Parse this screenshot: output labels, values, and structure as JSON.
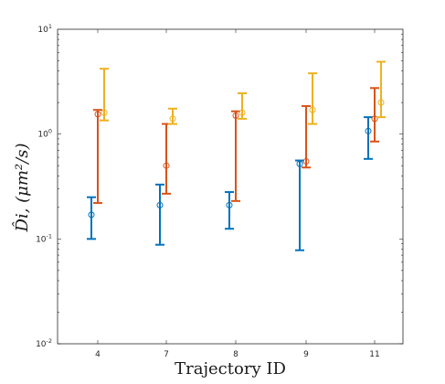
{
  "chart_data": {
    "type": "scatter",
    "subtype": "error-bar",
    "xlabel": "Trajectory ID",
    "ylabel": "D̂i, (μm²/s)",
    "yscale": "log",
    "ylim": [
      0.01,
      10
    ],
    "categories": [
      "4",
      "7",
      "8",
      "9",
      "11"
    ],
    "ytick_labels": [
      {
        "base": "10",
        "exp": "-2"
      },
      {
        "base": "10",
        "exp": "-1"
      },
      {
        "base": "10",
        "exp": "0"
      },
      {
        "base": "10",
        "exp": "1"
      }
    ],
    "grid": false,
    "legend": "none",
    "series": [
      {
        "color": "#0072BD",
        "values": [
          0.17,
          0.21,
          0.21,
          0.52,
          1.07
        ],
        "lower": [
          0.1,
          0.088,
          0.125,
          0.078,
          0.58
        ],
        "upper": [
          0.25,
          0.33,
          0.28,
          0.56,
          1.45
        ]
      },
      {
        "color": "#D95319",
        "values": [
          1.55,
          0.5,
          1.5,
          0.55,
          1.4
        ],
        "lower": [
          0.22,
          0.27,
          0.23,
          0.48,
          0.85
        ],
        "upper": [
          1.7,
          1.25,
          1.65,
          1.85,
          2.75
        ]
      },
      {
        "color": "#EDB120",
        "values": [
          1.6,
          1.4,
          1.6,
          1.7,
          2.0
        ],
        "lower": [
          1.35,
          1.25,
          1.4,
          1.25,
          1.45
        ],
        "upper": [
          4.2,
          1.75,
          2.45,
          3.8,
          4.9
        ]
      }
    ]
  }
}
